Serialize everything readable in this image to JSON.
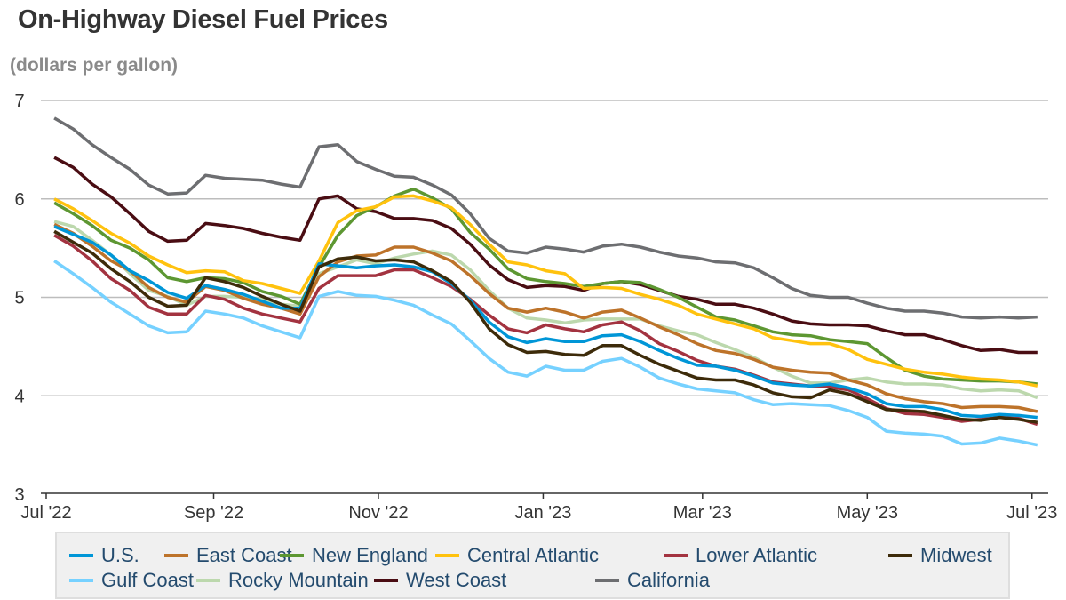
{
  "title": "On-Highway Diesel Fuel Prices",
  "subtitle": "(dollars per gallon)",
  "chart_data": {
    "type": "line",
    "title": "On-Highway Diesel Fuel Prices",
    "ylabel": "(dollars per gallon)",
    "xlabel": "",
    "ylim": [
      3,
      7
    ],
    "xlim": [
      "2022-07-01",
      "2023-07-07"
    ],
    "yticks": [
      "3",
      "4",
      "5",
      "6",
      "7"
    ],
    "xticks": [
      {
        "date": "2022-07-01",
        "label": "Jul '22"
      },
      {
        "date": "2022-09-01",
        "label": "Sep '22"
      },
      {
        "date": "2022-11-01",
        "label": "Nov '22"
      },
      {
        "date": "2023-01-01",
        "label": "Jan '23"
      },
      {
        "date": "2023-03-01",
        "label": "Mar '23"
      },
      {
        "date": "2023-05-01",
        "label": "May '23"
      },
      {
        "date": "2023-07-01",
        "label": "Jul '23"
      }
    ],
    "grid": "horizontal",
    "legend": "bottom",
    "x": [
      "2022-07-04",
      "2022-07-11",
      "2022-07-18",
      "2022-07-25",
      "2022-08-01",
      "2022-08-08",
      "2022-08-15",
      "2022-08-22",
      "2022-08-29",
      "2022-09-05",
      "2022-09-12",
      "2022-09-19",
      "2022-09-26",
      "2022-10-03",
      "2022-10-10",
      "2022-10-17",
      "2022-10-24",
      "2022-10-31",
      "2022-11-07",
      "2022-11-14",
      "2022-11-21",
      "2022-11-28",
      "2022-12-05",
      "2022-12-12",
      "2022-12-19",
      "2022-12-26",
      "2023-01-02",
      "2023-01-09",
      "2023-01-16",
      "2023-01-23",
      "2023-01-30",
      "2023-02-06",
      "2023-02-13",
      "2023-02-20",
      "2023-02-27",
      "2023-03-06",
      "2023-03-13",
      "2023-03-20",
      "2023-03-27",
      "2023-04-03",
      "2023-04-10",
      "2023-04-17",
      "2023-04-24",
      "2023-05-01",
      "2023-05-08",
      "2023-05-15",
      "2023-05-22",
      "2023-05-29",
      "2023-06-05",
      "2023-06-12",
      "2023-06-19",
      "2023-06-26",
      "2023-07-03"
    ],
    "series": [
      {
        "name": "California",
        "color": "#6d6e71",
        "values": [
          6.82,
          6.71,
          6.55,
          6.42,
          6.3,
          6.14,
          6.05,
          6.06,
          6.24,
          6.21,
          6.2,
          6.19,
          6.15,
          6.12,
          6.53,
          6.55,
          6.38,
          6.3,
          6.23,
          6.22,
          6.14,
          6.04,
          5.85,
          5.6,
          5.47,
          5.45,
          5.51,
          5.49,
          5.46,
          5.52,
          5.54,
          5.51,
          5.46,
          5.42,
          5.4,
          5.36,
          5.35,
          5.3,
          5.2,
          5.09,
          5.02,
          5.0,
          5.0,
          4.94,
          4.89,
          4.86,
          4.86,
          4.84,
          4.8,
          4.79,
          4.8,
          4.79,
          4.8
        ]
      },
      {
        "name": "West Coast",
        "color": "#4a0d13",
        "values": [
          6.42,
          6.32,
          6.15,
          6.02,
          5.85,
          5.67,
          5.57,
          5.58,
          5.75,
          5.73,
          5.7,
          5.65,
          5.61,
          5.58,
          6.0,
          6.03,
          5.9,
          5.87,
          5.8,
          5.8,
          5.78,
          5.7,
          5.54,
          5.33,
          5.18,
          5.1,
          5.12,
          5.11,
          5.07,
          5.14,
          5.16,
          5.13,
          5.07,
          5.01,
          4.98,
          4.93,
          4.93,
          4.89,
          4.83,
          4.76,
          4.73,
          4.72,
          4.72,
          4.71,
          4.66,
          4.62,
          4.62,
          4.57,
          4.51,
          4.46,
          4.47,
          4.44,
          4.44
        ]
      },
      {
        "name": "Rocky Mountain",
        "color": "#bcd8ad",
        "values": [
          5.77,
          5.72,
          5.58,
          5.43,
          5.24,
          5.07,
          5.01,
          4.92,
          5.01,
          5.01,
          5.0,
          4.98,
          4.93,
          4.91,
          5.24,
          5.31,
          5.38,
          5.34,
          5.4,
          5.44,
          5.47,
          5.43,
          5.28,
          5.07,
          4.89,
          4.79,
          4.77,
          4.74,
          4.77,
          4.78,
          4.78,
          4.78,
          4.71,
          4.66,
          4.62,
          4.54,
          4.47,
          4.39,
          4.29,
          4.2,
          4.13,
          4.13,
          4.16,
          4.18,
          4.14,
          4.12,
          4.12,
          4.11,
          4.07,
          4.05,
          4.06,
          4.05,
          3.98
        ]
      },
      {
        "name": "East Coast",
        "color": "#bd732a",
        "values": [
          5.74,
          5.65,
          5.52,
          5.37,
          5.27,
          5.1,
          5.0,
          4.95,
          5.11,
          5.07,
          4.99,
          4.93,
          4.89,
          4.83,
          5.21,
          5.36,
          5.42,
          5.43,
          5.51,
          5.51,
          5.45,
          5.37,
          5.22,
          5.04,
          4.89,
          4.85,
          4.89,
          4.85,
          4.79,
          4.85,
          4.87,
          4.79,
          4.7,
          4.62,
          4.53,
          4.46,
          4.43,
          4.37,
          4.29,
          4.26,
          4.24,
          4.23,
          4.16,
          4.11,
          4.02,
          3.97,
          3.94,
          3.92,
          3.88,
          3.89,
          3.89,
          3.88,
          3.84
        ]
      },
      {
        "name": "New England",
        "color": "#5d9732",
        "values": [
          5.96,
          5.85,
          5.73,
          5.58,
          5.5,
          5.38,
          5.2,
          5.16,
          5.2,
          5.19,
          5.15,
          5.06,
          5.01,
          4.93,
          5.31,
          5.63,
          5.83,
          5.92,
          6.03,
          6.1,
          6.01,
          5.9,
          5.66,
          5.49,
          5.29,
          5.19,
          5.16,
          5.14,
          5.11,
          5.14,
          5.16,
          5.15,
          5.08,
          5.0,
          4.9,
          4.8,
          4.77,
          4.71,
          4.65,
          4.62,
          4.61,
          4.57,
          4.55,
          4.53,
          4.39,
          4.26,
          4.2,
          4.17,
          4.16,
          4.15,
          4.15,
          4.14,
          4.12
        ]
      },
      {
        "name": "Central Atlantic",
        "color": "#ffc20e",
        "values": [
          6.0,
          5.9,
          5.78,
          5.65,
          5.55,
          5.42,
          5.33,
          5.25,
          5.27,
          5.26,
          5.17,
          5.14,
          5.09,
          5.04,
          5.37,
          5.76,
          5.88,
          5.92,
          6.02,
          6.03,
          5.98,
          5.91,
          5.74,
          5.54,
          5.36,
          5.33,
          5.27,
          5.24,
          5.09,
          5.1,
          5.09,
          5.03,
          4.98,
          4.92,
          4.83,
          4.78,
          4.73,
          4.68,
          4.59,
          4.56,
          4.53,
          4.53,
          4.47,
          4.37,
          4.32,
          4.27,
          4.24,
          4.22,
          4.19,
          4.17,
          4.16,
          4.14,
          4.1
        ]
      },
      {
        "name": "Gulf Coast",
        "color": "#76d1ff",
        "values": [
          5.37,
          5.24,
          5.1,
          4.95,
          4.83,
          4.71,
          4.64,
          4.65,
          4.86,
          4.83,
          4.79,
          4.71,
          4.65,
          4.59,
          5.01,
          5.06,
          5.02,
          5.01,
          4.97,
          4.92,
          4.82,
          4.73,
          4.56,
          4.38,
          4.24,
          4.2,
          4.3,
          4.26,
          4.26,
          4.35,
          4.38,
          4.29,
          4.18,
          4.12,
          4.07,
          4.05,
          4.03,
          3.96,
          3.91,
          3.92,
          3.91,
          3.9,
          3.85,
          3.78,
          3.64,
          3.62,
          3.61,
          3.59,
          3.51,
          3.52,
          3.57,
          3.54,
          3.5
        ]
      },
      {
        "name": "Lower Atlantic",
        "color": "#a33340",
        "values": [
          5.63,
          5.52,
          5.37,
          5.19,
          5.07,
          4.9,
          4.83,
          4.83,
          5.02,
          4.98,
          4.89,
          4.83,
          4.79,
          4.75,
          5.09,
          5.22,
          5.22,
          5.22,
          5.28,
          5.28,
          5.2,
          5.11,
          4.98,
          4.82,
          4.68,
          4.64,
          4.72,
          4.68,
          4.65,
          4.72,
          4.75,
          4.66,
          4.53,
          4.45,
          4.36,
          4.3,
          4.27,
          4.21,
          4.14,
          4.12,
          4.1,
          4.09,
          4.06,
          3.97,
          3.87,
          3.82,
          3.81,
          3.78,
          3.74,
          3.76,
          3.78,
          3.77,
          3.71
        ]
      },
      {
        "name": "U.S.",
        "color": "#0096d7",
        "values": [
          5.72,
          5.64,
          5.56,
          5.43,
          5.27,
          5.17,
          5.05,
          4.99,
          5.12,
          5.08,
          5.03,
          4.96,
          4.89,
          4.89,
          5.34,
          5.32,
          5.3,
          5.32,
          5.33,
          5.31,
          5.26,
          5.14,
          4.97,
          4.75,
          4.6,
          4.54,
          4.58,
          4.55,
          4.55,
          4.61,
          4.62,
          4.55,
          4.46,
          4.38,
          4.31,
          4.3,
          4.26,
          4.2,
          4.13,
          4.11,
          4.1,
          4.12,
          4.08,
          4.02,
          3.92,
          3.89,
          3.89,
          3.86,
          3.8,
          3.79,
          3.81,
          3.8,
          3.78
        ]
      },
      {
        "name": "Midwest",
        "color": "#3d2b0a",
        "values": [
          5.67,
          5.56,
          5.45,
          5.29,
          5.16,
          5.0,
          4.91,
          4.92,
          5.2,
          5.16,
          5.1,
          5.01,
          4.93,
          4.86,
          5.31,
          5.39,
          5.41,
          5.37,
          5.38,
          5.36,
          5.27,
          5.16,
          4.95,
          4.68,
          4.52,
          4.44,
          4.45,
          4.42,
          4.41,
          4.51,
          4.51,
          4.41,
          4.32,
          4.25,
          4.18,
          4.16,
          4.16,
          4.11,
          4.03,
          3.99,
          3.98,
          4.06,
          4.02,
          3.94,
          3.86,
          3.85,
          3.84,
          3.8,
          3.76,
          3.75,
          3.78,
          3.76,
          3.73
        ]
      }
    ]
  },
  "legend": [
    {
      "label": "U.S.",
      "color": "#0096d7"
    },
    {
      "label": "East Coast",
      "color": "#bd732a"
    },
    {
      "label": "New England",
      "color": "#5d9732"
    },
    {
      "label": "Central Atlantic",
      "color": "#ffc20e"
    },
    {
      "label": "Lower Atlantic",
      "color": "#a33340"
    },
    {
      "label": "Midwest",
      "color": "#3d2b0a"
    },
    {
      "label": "Gulf Coast",
      "color": "#76d1ff"
    },
    {
      "label": "Rocky Mountain",
      "color": "#bcd8ad"
    },
    {
      "label": "West Coast",
      "color": "#4a0d13"
    },
    {
      "label": "California",
      "color": "#6d6e71"
    }
  ]
}
